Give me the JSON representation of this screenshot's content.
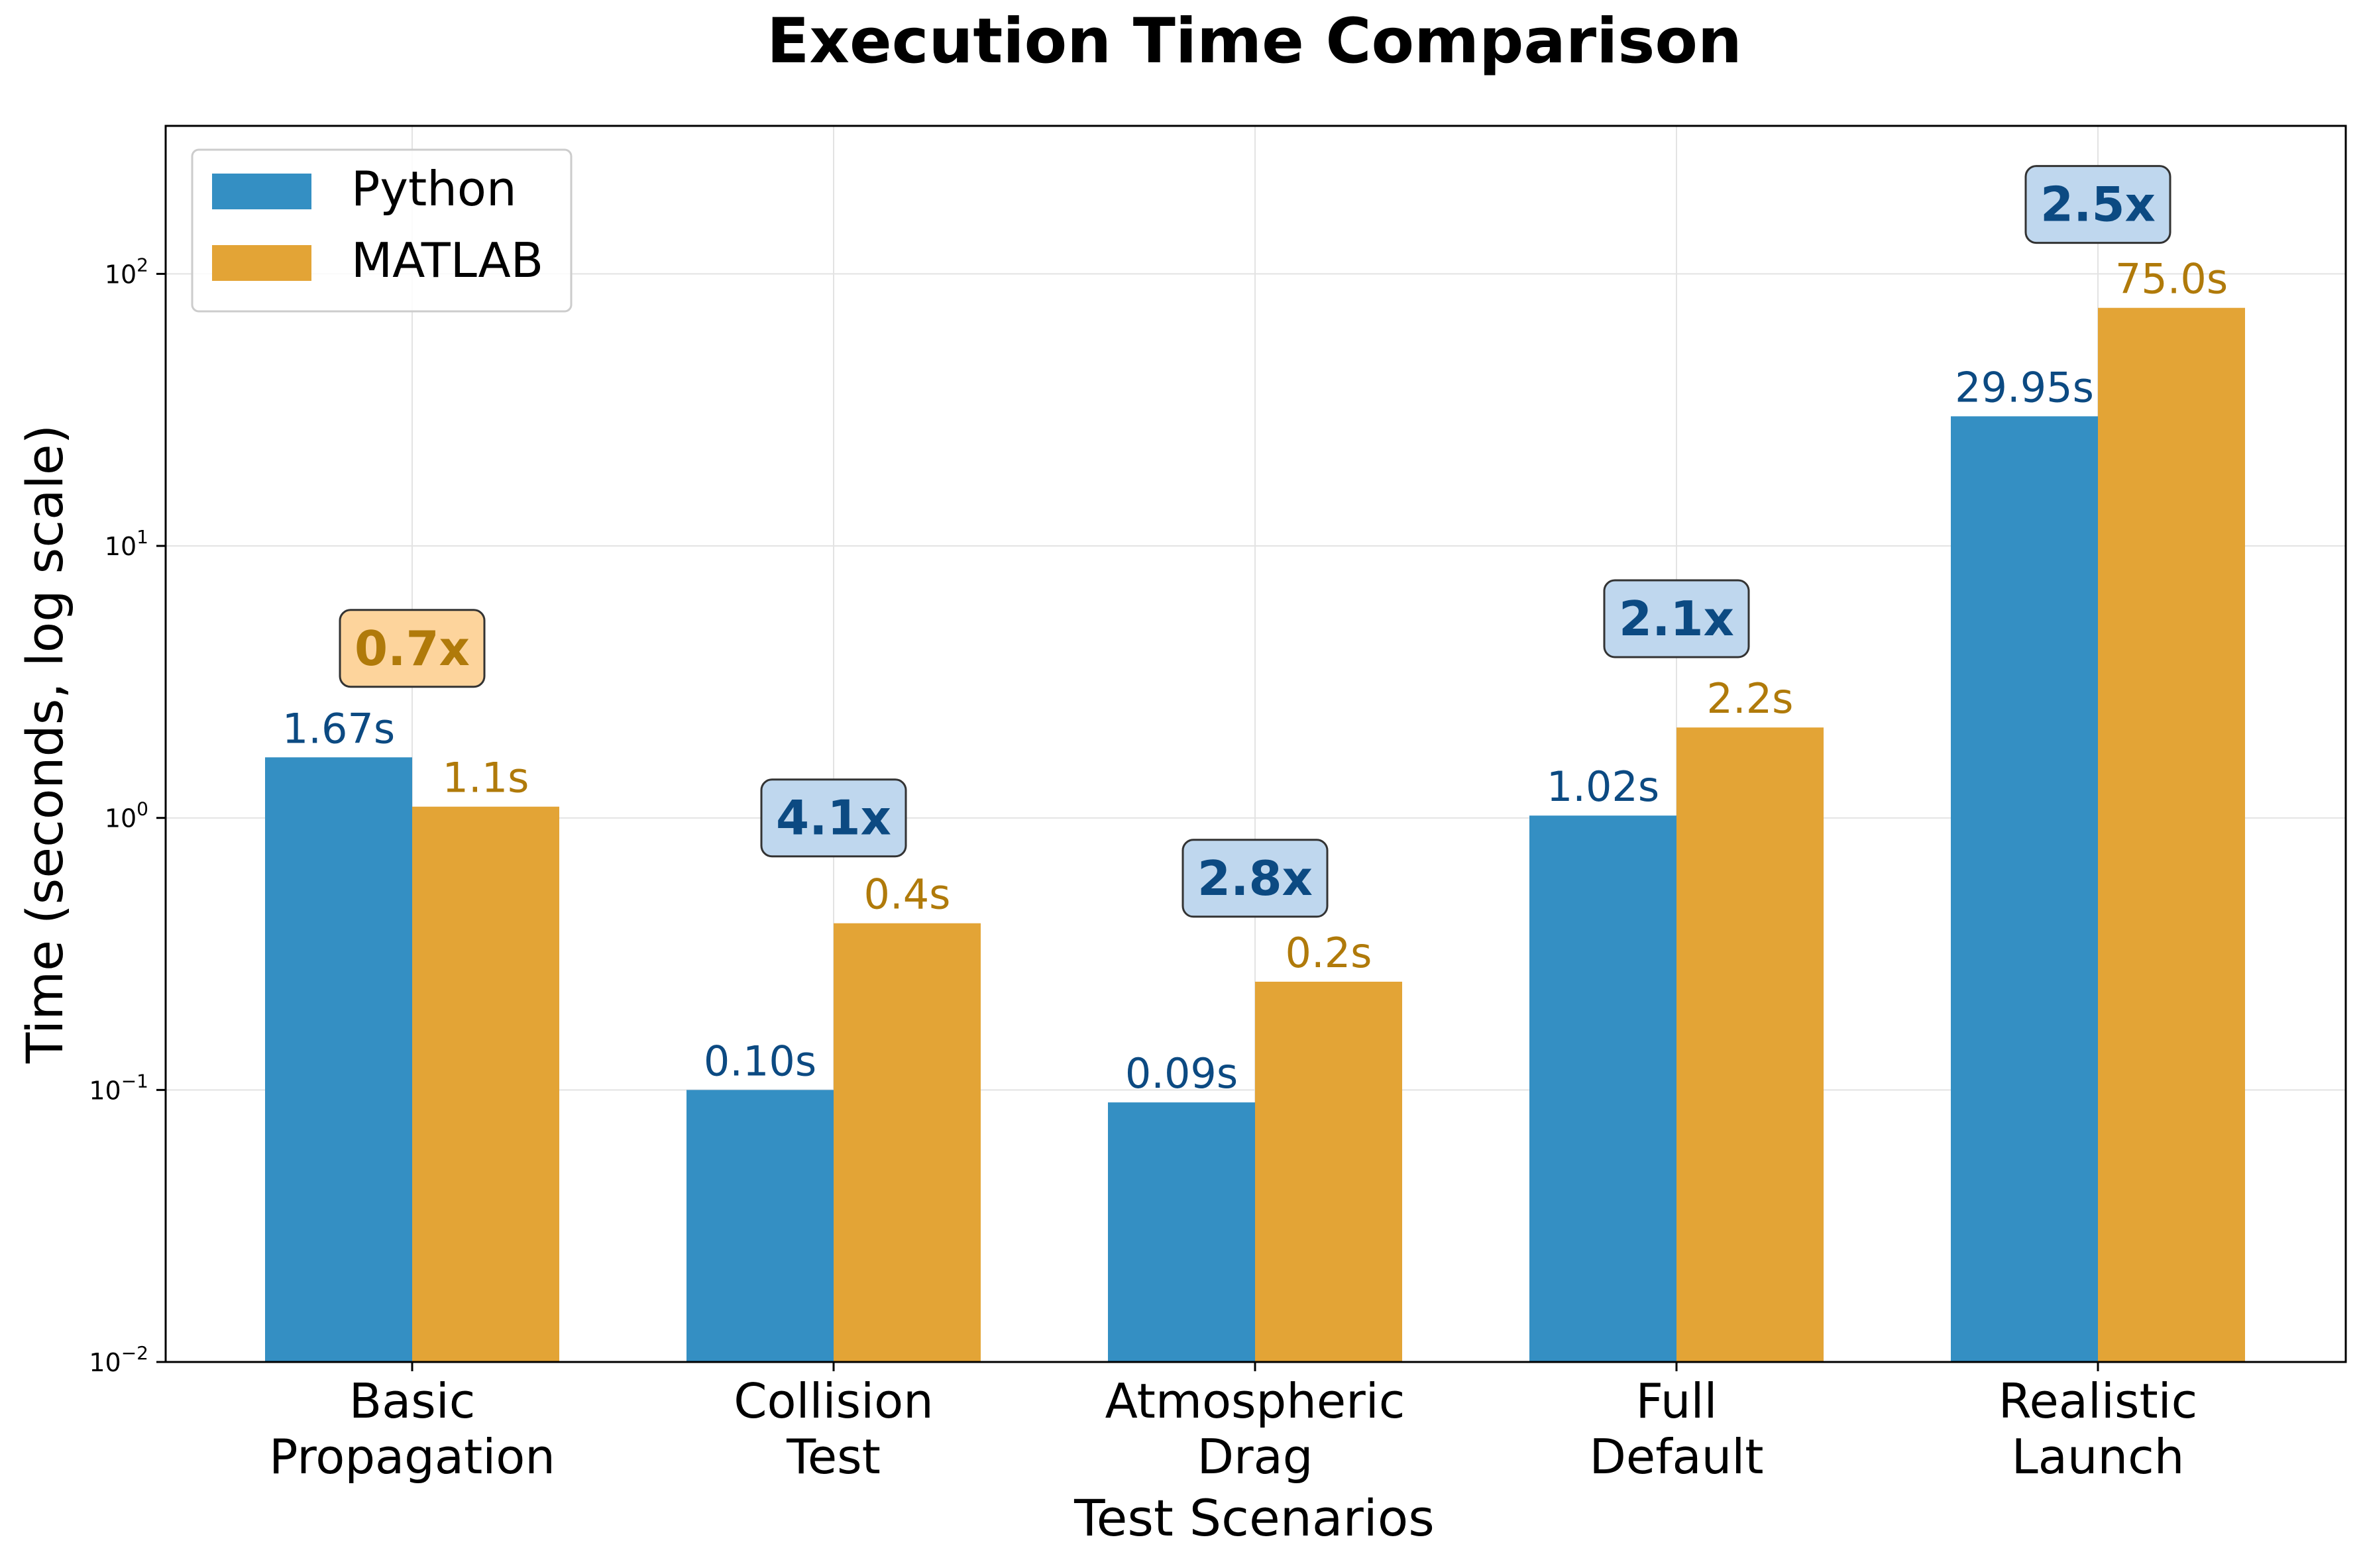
{
  "chart_data": {
    "type": "bar",
    "title": "Execution Time Comparison",
    "xlabel": "Test Scenarios",
    "ylabel": "Time (seconds, log scale)",
    "y_scale": "log",
    "ylim": [
      0.01,
      350
    ],
    "grid": true,
    "legend_position": "top-left",
    "categories": [
      [
        "Basic",
        "Propagation"
      ],
      [
        "Collision",
        "Test"
      ],
      [
        "Atmospheric",
        "Drag"
      ],
      [
        "Full",
        "Default"
      ],
      [
        "Realistic",
        "Launch"
      ]
    ],
    "y_ticks": [
      {
        "value": 0.01,
        "base": "10",
        "exp": "−2"
      },
      {
        "value": 0.1,
        "base": "10",
        "exp": "−1"
      },
      {
        "value": 1,
        "base": "10",
        "exp": "0"
      },
      {
        "value": 10,
        "base": "10",
        "exp": "1"
      },
      {
        "value": 100,
        "base": "10",
        "exp": "2"
      }
    ],
    "series": [
      {
        "name": "Python",
        "color": "#348fc3",
        "label_color": "#0c4a82",
        "values": [
          1.67,
          0.1,
          0.09,
          1.02,
          29.95
        ],
        "labels": [
          "1.67s",
          "0.10s",
          "0.09s",
          "1.02s",
          "29.95s"
        ]
      },
      {
        "name": "MATLAB",
        "color": "#e3a436",
        "label_color": "#b07a0a",
        "values": [
          1.1,
          0.41,
          0.25,
          2.15,
          75.0
        ],
        "labels": [
          "1.1s",
          "0.4s",
          "0.2s",
          "2.2s",
          "75.0s"
        ]
      }
    ],
    "speedups": [
      {
        "label": "0.7x",
        "at": 4.2,
        "text_color": "#b07a0a",
        "box_color": "#fdd49c"
      },
      {
        "label": "4.1x",
        "at": 1.0,
        "text_color": "#0c4a82",
        "box_color": "#bfd7ee"
      },
      {
        "label": "2.8x",
        "at": 0.6,
        "text_color": "#0c4a82",
        "box_color": "#bfd7ee"
      },
      {
        "label": "2.1x",
        "at": 5.4,
        "text_color": "#0c4a82",
        "box_color": "#bfd7ee"
      },
      {
        "label": "2.5x",
        "at": 180,
        "text_color": "#0c4a82",
        "box_color": "#bfd7ee"
      }
    ]
  }
}
